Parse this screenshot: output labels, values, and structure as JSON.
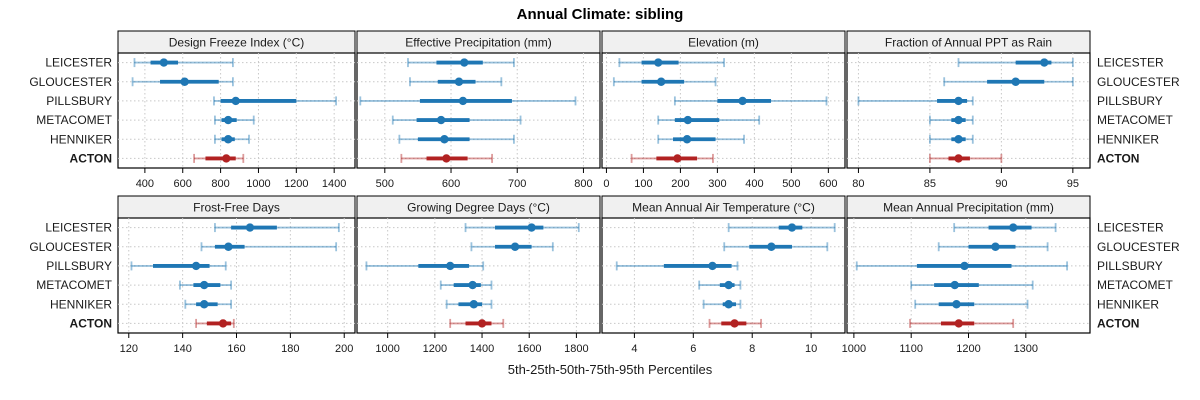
{
  "title": "Annual Climate: sibling",
  "xlabel": "5th-25th-50th-75th-95th Percentiles",
  "locations": [
    "LEICESTER",
    "GLOUCESTER",
    "PILLSBURY",
    "METACOMET",
    "HENNIKER",
    "ACTON"
  ],
  "highlight_location": "ACTON",
  "percentile_labels": [
    "5th",
    "25th",
    "50th",
    "75th",
    "95th"
  ],
  "colors": {
    "series_blue": "#1F77B4",
    "highlight_red": "#B22222",
    "faded_alpha": 0.45,
    "grid": "#C8C8C8",
    "strip_bg": "#F0F0F0",
    "border": "#000000",
    "text": "#1a1a1a"
  },
  "chart_data": [
    {
      "type": "dotplot-interval",
      "panel": "Design Freeze Index (°C)",
      "grid": true,
      "xlim": [
        258,
        1510
      ],
      "xticks": [
        400,
        600,
        800,
        1000,
        1200,
        1400
      ],
      "rows": [
        {
          "location": "LEICESTER",
          "percentiles": [
            345,
            430,
            500,
            575,
            865
          ]
        },
        {
          "location": "GLOUCESTER",
          "percentiles": [
            335,
            480,
            610,
            790,
            865
          ]
        },
        {
          "location": "PILLSBURY",
          "percentiles": [
            765,
            800,
            880,
            1200,
            1410
          ]
        },
        {
          "location": "METACOMET",
          "percentiles": [
            770,
            805,
            840,
            885,
            975
          ]
        },
        {
          "location": "HENNIKER",
          "percentiles": [
            770,
            805,
            840,
            875,
            950
          ]
        },
        {
          "location": "ACTON",
          "percentiles": [
            660,
            720,
            830,
            880,
            920
          ]
        }
      ]
    },
    {
      "type": "dotplot-interval",
      "panel": "Effective Precipitation (mm)",
      "grid": true,
      "xlim": [
        458,
        825
      ],
      "xticks": [
        500,
        600,
        700,
        800
      ],
      "rows": [
        {
          "location": "LEICESTER",
          "percentiles": [
            535,
            578,
            620,
            648,
            695
          ]
        },
        {
          "location": "GLOUCESTER",
          "percentiles": [
            538,
            580,
            612,
            637,
            676
          ]
        },
        {
          "location": "PILLSBURY",
          "percentiles": [
            463,
            553,
            618,
            692,
            788
          ]
        },
        {
          "location": "METACOMET",
          "percentiles": [
            512,
            548,
            585,
            628,
            705
          ]
        },
        {
          "location": "HENNIKER",
          "percentiles": [
            522,
            550,
            590,
            628,
            695
          ]
        },
        {
          "location": "ACTON",
          "percentiles": [
            525,
            563,
            593,
            625,
            662
          ]
        }
      ]
    },
    {
      "type": "dotplot-interval",
      "panel": "Elevation (m)",
      "grid": true,
      "xlim": [
        -12,
        645
      ],
      "xticks": [
        0,
        100,
        200,
        300,
        400,
        500,
        600
      ],
      "rows": [
        {
          "location": "LEICESTER",
          "percentiles": [
            35,
            95,
            140,
            195,
            318
          ]
        },
        {
          "location": "GLOUCESTER",
          "percentiles": [
            20,
            95,
            148,
            210,
            295
          ]
        },
        {
          "location": "PILLSBURY",
          "percentiles": [
            185,
            300,
            368,
            445,
            595
          ]
        },
        {
          "location": "METACOMET",
          "percentiles": [
            140,
            185,
            220,
            305,
            413
          ]
        },
        {
          "location": "HENNIKER",
          "percentiles": [
            140,
            180,
            218,
            295,
            372
          ]
        },
        {
          "location": "ACTON",
          "percentiles": [
            68,
            135,
            192,
            245,
            288
          ]
        }
      ]
    },
    {
      "type": "dotplot-interval",
      "panel": "Fraction of Annual PPT as Rain",
      "grid": true,
      "xlim": [
        79.2,
        96.2
      ],
      "xticks": [
        80,
        85,
        90,
        95
      ],
      "rows": [
        {
          "location": "LEICESTER",
          "percentiles": [
            87,
            91,
            93,
            93.5,
            95
          ]
        },
        {
          "location": "GLOUCESTER",
          "percentiles": [
            86,
            89,
            91,
            93,
            95
          ]
        },
        {
          "location": "PILLSBURY",
          "percentiles": [
            80,
            85.5,
            87,
            87.6,
            88
          ]
        },
        {
          "location": "METACOMET",
          "percentiles": [
            85,
            86.5,
            87,
            87.5,
            88
          ]
        },
        {
          "location": "HENNIKER",
          "percentiles": [
            85,
            86.5,
            87,
            87.5,
            88
          ]
        },
        {
          "location": "ACTON",
          "percentiles": [
            85,
            86.3,
            87,
            87.8,
            90
          ]
        }
      ]
    },
    {
      "type": "dotplot-interval",
      "panel": "Frost-Free Days",
      "grid": true,
      "xlim": [
        116,
        204
      ],
      "xticks": [
        120,
        140,
        160,
        180,
        200
      ],
      "rows": [
        {
          "location": "LEICESTER",
          "percentiles": [
            152,
            158,
            165,
            175,
            198
          ]
        },
        {
          "location": "GLOUCESTER",
          "percentiles": [
            147,
            152,
            157,
            163,
            197
          ]
        },
        {
          "location": "PILLSBURY",
          "percentiles": [
            121,
            129,
            145,
            150,
            156
          ]
        },
        {
          "location": "METACOMET",
          "percentiles": [
            139,
            144,
            148,
            154,
            158
          ]
        },
        {
          "location": "HENNIKER",
          "percentiles": [
            141,
            145,
            148,
            153,
            158
          ]
        },
        {
          "location": "ACTON",
          "percentiles": [
            145,
            149,
            155,
            158,
            159
          ]
        }
      ]
    },
    {
      "type": "dotplot-interval",
      "panel": "Growing Degree Days (°C)",
      "grid": true,
      "xlim": [
        870,
        1900
      ],
      "xticks": [
        1000,
        1200,
        1400,
        1600,
        1800
      ],
      "rows": [
        {
          "location": "LEICESTER",
          "percentiles": [
            1330,
            1455,
            1610,
            1660,
            1810
          ]
        },
        {
          "location": "GLOUCESTER",
          "percentiles": [
            1355,
            1455,
            1540,
            1610,
            1700
          ]
        },
        {
          "location": "PILLSBURY",
          "percentiles": [
            910,
            1130,
            1265,
            1345,
            1405
          ]
        },
        {
          "location": "METACOMET",
          "percentiles": [
            1225,
            1280,
            1360,
            1395,
            1440
          ]
        },
        {
          "location": "HENNIKER",
          "percentiles": [
            1250,
            1300,
            1365,
            1400,
            1440
          ]
        },
        {
          "location": "ACTON",
          "percentiles": [
            1265,
            1330,
            1400,
            1440,
            1490
          ]
        }
      ]
    },
    {
      "type": "dotplot-interval",
      "panel": "Mean Annual Air Temperature (°C)",
      "grid": true,
      "xlim": [
        2.9,
        11.15
      ],
      "xticks": [
        4,
        6,
        8,
        10
      ],
      "rows": [
        {
          "location": "LEICESTER",
          "percentiles": [
            7.2,
            8.9,
            9.35,
            9.7,
            10.8
          ]
        },
        {
          "location": "GLOUCESTER",
          "percentiles": [
            7.05,
            7.9,
            8.65,
            9.35,
            10.55
          ]
        },
        {
          "location": "PILLSBURY",
          "percentiles": [
            3.4,
            5.0,
            6.65,
            7.3,
            7.5
          ]
        },
        {
          "location": "METACOMET",
          "percentiles": [
            6.2,
            6.9,
            7.2,
            7.4,
            7.6
          ]
        },
        {
          "location": "HENNIKER",
          "percentiles": [
            6.35,
            7.0,
            7.2,
            7.45,
            7.6
          ]
        },
        {
          "location": "ACTON",
          "percentiles": [
            6.55,
            6.95,
            7.4,
            7.8,
            8.3
          ]
        }
      ]
    },
    {
      "type": "dotplot-interval",
      "panel": "Mean Annual Precipitation (mm)",
      "grid": true,
      "xlim": [
        988,
        1412
      ],
      "xticks": [
        1000,
        1100,
        1200,
        1300
      ],
      "rows": [
        {
          "location": "LEICESTER",
          "percentiles": [
            1175,
            1235,
            1278,
            1310,
            1352
          ]
        },
        {
          "location": "GLOUCESTER",
          "percentiles": [
            1148,
            1200,
            1247,
            1282,
            1338
          ]
        },
        {
          "location": "PILLSBURY",
          "percentiles": [
            1005,
            1110,
            1193,
            1275,
            1372
          ]
        },
        {
          "location": "METACOMET",
          "percentiles": [
            1100,
            1140,
            1176,
            1218,
            1312
          ]
        },
        {
          "location": "HENNIKER",
          "percentiles": [
            1107,
            1148,
            1179,
            1210,
            1303
          ]
        },
        {
          "location": "ACTON",
          "percentiles": [
            1098,
            1152,
            1183,
            1210,
            1278
          ]
        }
      ]
    }
  ]
}
